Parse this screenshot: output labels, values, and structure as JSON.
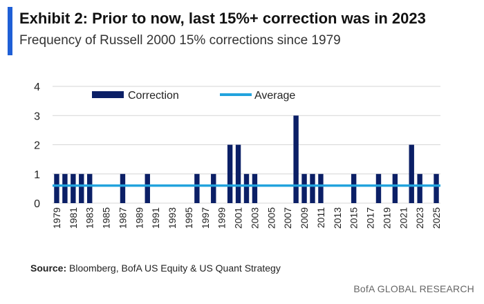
{
  "title": "Exhibit 2: Prior to now, last 15%+ correction was in 2023",
  "subtitle": "Frequency of Russell 2000 15% corrections since 1979",
  "source_label": "Source:",
  "source_text": " Bloomberg, BofA US Equity & US Quant Strategy",
  "brand": "BofA GLOBAL RESEARCH",
  "colors": {
    "bar": "#0b1f66",
    "average": "#22a3dd",
    "grid": "#d6d6d6",
    "accent": "#1f5fd6"
  },
  "chart_data": {
    "type": "bar",
    "x": [
      1979,
      1980,
      1981,
      1982,
      1983,
      1984,
      1985,
      1986,
      1987,
      1988,
      1989,
      1990,
      1991,
      1992,
      1993,
      1994,
      1995,
      1996,
      1997,
      1998,
      1999,
      2000,
      2001,
      2002,
      2003,
      2004,
      2005,
      2006,
      2007,
      2008,
      2009,
      2010,
      2011,
      2012,
      2013,
      2014,
      2015,
      2016,
      2017,
      2018,
      2019,
      2020,
      2021,
      2022,
      2023,
      2024,
      2025
    ],
    "x_tick_labels": [
      "1979",
      "1981",
      "1983",
      "1985",
      "1987",
      "1989",
      "1991",
      "1993",
      "1995",
      "1997",
      "1999",
      "2001",
      "2003",
      "2005",
      "2007",
      "2009",
      "2011",
      "2013",
      "2015",
      "2017",
      "2019",
      "2021",
      "2023",
      "2025"
    ],
    "series": [
      {
        "name": "Correction",
        "values": [
          1,
          1,
          1,
          1,
          1,
          0,
          0,
          0,
          1,
          0,
          0,
          1,
          0,
          0,
          0,
          0,
          0,
          1,
          0,
          1,
          0,
          2,
          2,
          1,
          1,
          0,
          0,
          0,
          0,
          3,
          1,
          1,
          1,
          0,
          0,
          0,
          1,
          0,
          0,
          1,
          0,
          1,
          0,
          2,
          1,
          0,
          1
        ]
      },
      {
        "name": "Average",
        "type": "line",
        "value": 0.6
      }
    ],
    "ylim": [
      0,
      4
    ],
    "y_ticks": [
      0,
      1,
      2,
      3,
      4
    ],
    "grid": true,
    "legend": "top"
  }
}
